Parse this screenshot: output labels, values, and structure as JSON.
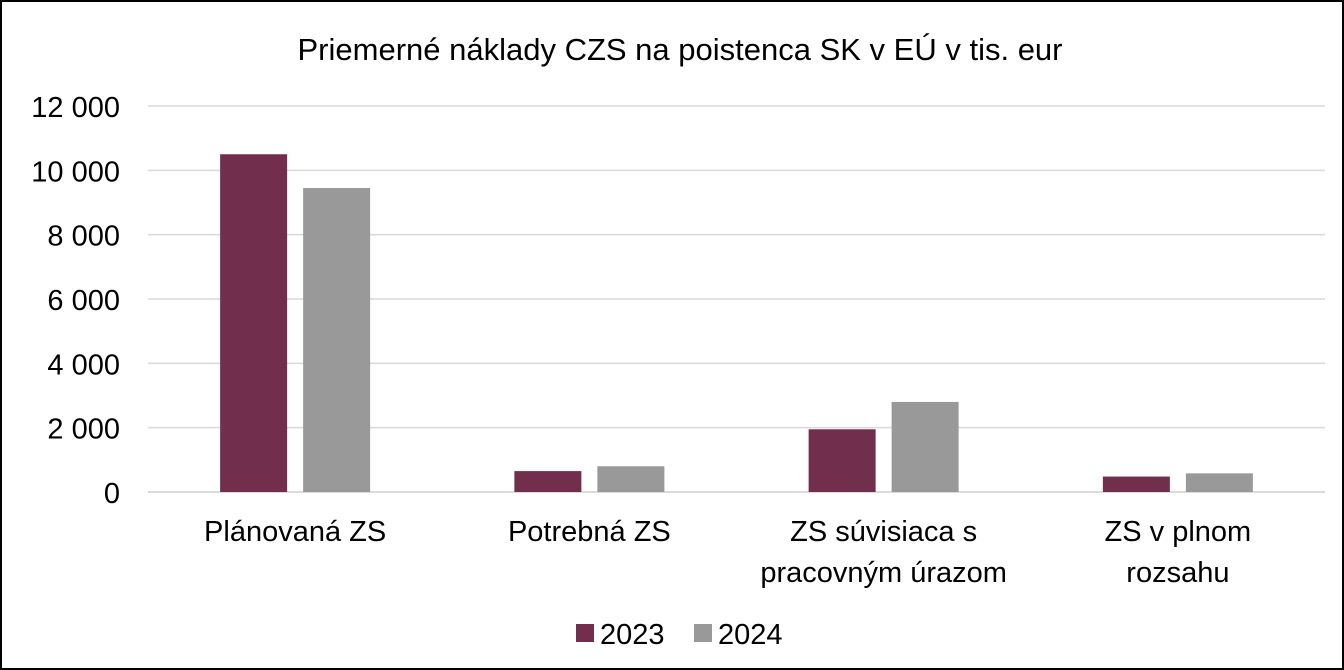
{
  "chart_data": {
    "type": "bar",
    "title": "Priemerné náklady CZS na poistenca SK v EÚ v tis. eur",
    "xlabel": "",
    "ylabel": "",
    "ylim": [
      0,
      12000
    ],
    "yticks": [
      0,
      2000,
      4000,
      6000,
      8000,
      10000,
      12000
    ],
    "ytick_labels": [
      "0",
      "2 000",
      "4 000",
      "6 000",
      "8 000",
      "10 000",
      "12 000"
    ],
    "categories": [
      [
        "Plánovaná ZS"
      ],
      [
        "Potrebná ZS"
      ],
      [
        "ZS súvisiaca s",
        "pracovným úrazom"
      ],
      [
        "ZS v plnom",
        "rozsahu"
      ]
    ],
    "series": [
      {
        "name": "2023",
        "color": "#722f4d",
        "values": [
          10500,
          650,
          1950,
          480
        ]
      },
      {
        "name": "2024",
        "color": "#999999",
        "values": [
          9450,
          800,
          2800,
          580
        ]
      }
    ],
    "grid": true,
    "legend": "bottom"
  }
}
